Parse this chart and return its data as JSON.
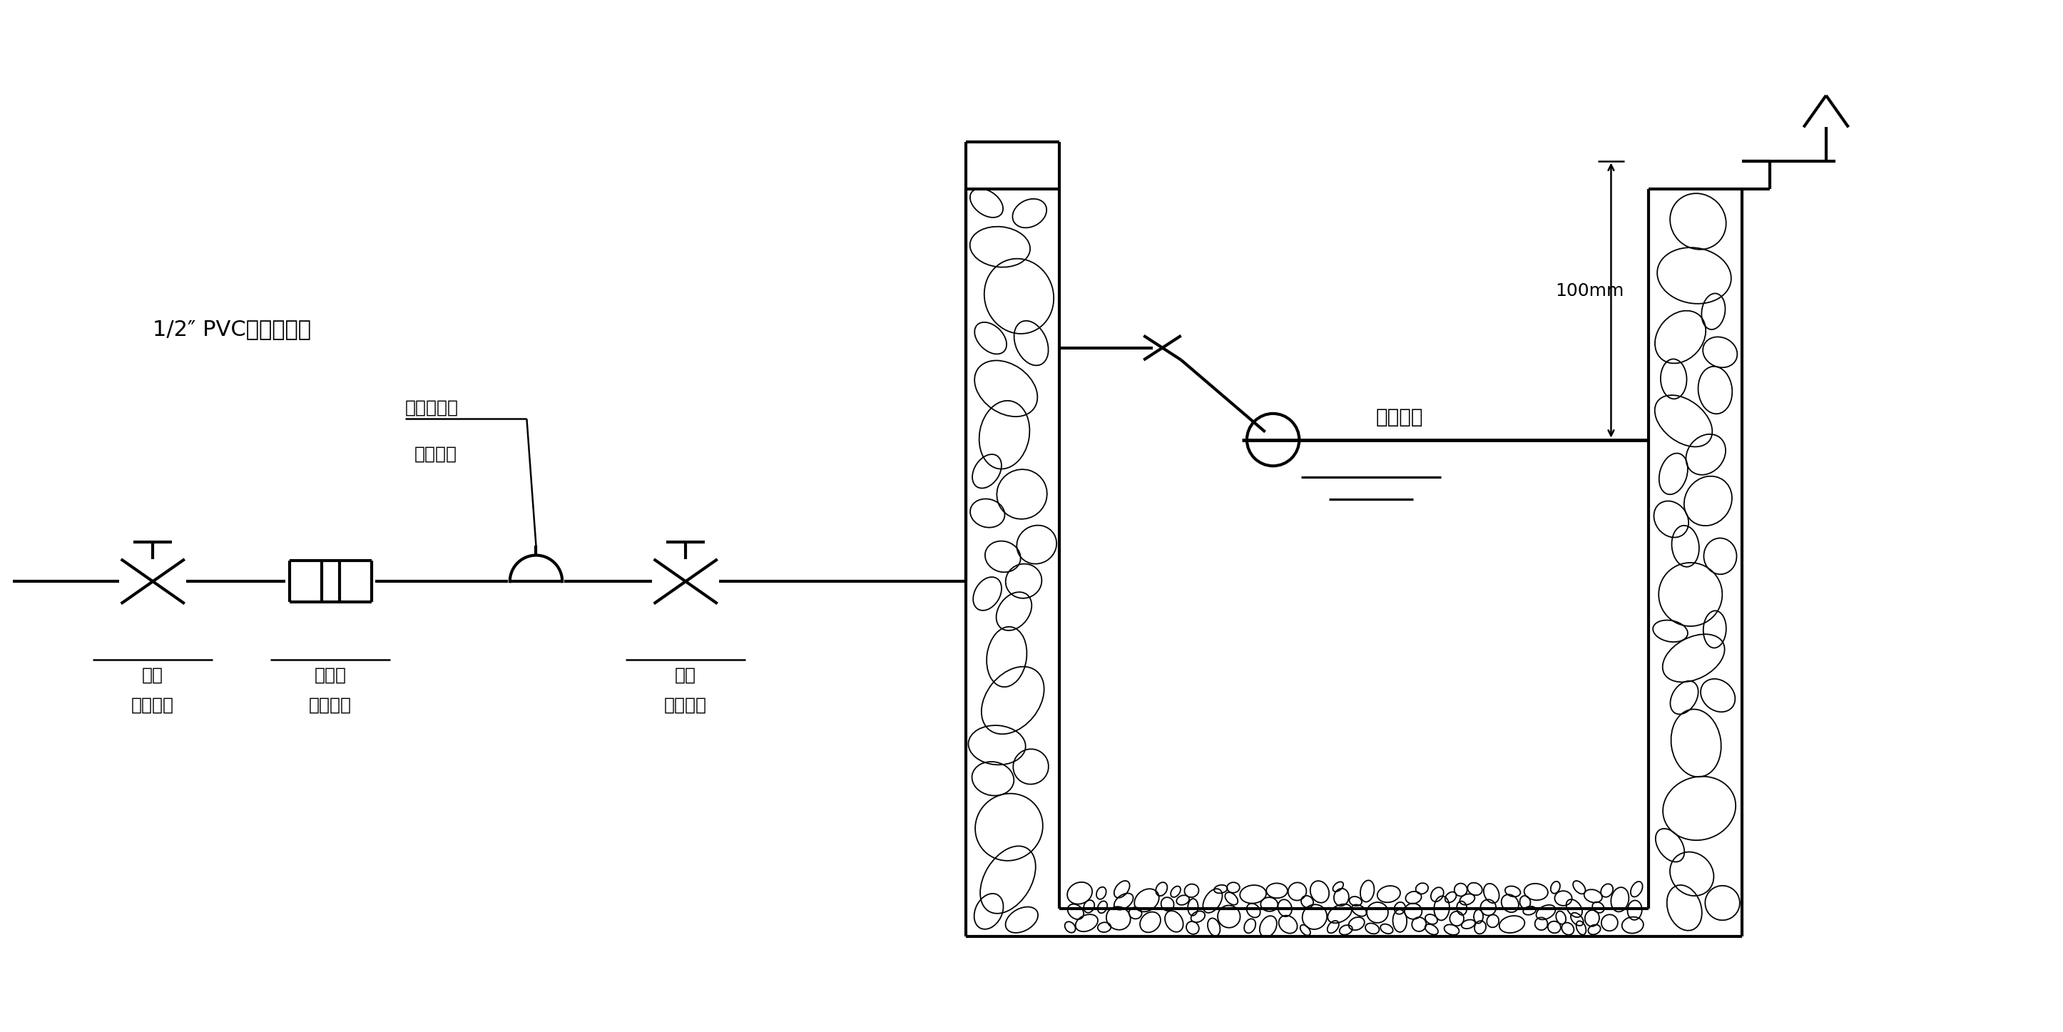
{
  "bg_color": "#ffffff",
  "lc": "#000000",
  "lw_main": 3.0,
  "lw_thin": 1.8,
  "fw": 28.92,
  "fh": 14.47,
  "t_pvc": "1/2″ PVC管或镀锌管",
  "t_valve_1": "遥控浮球阀",
  "t_valve_2": "（主阀）",
  "t_gate1_1": "闸阀",
  "t_gate1_2": "用户自备",
  "t_filter_1": "过滤器",
  "t_filter_2": "用户自备",
  "t_gate2_1": "闸阀",
  "t_gate2_2": "用户自备",
  "t_100mm": "100mm",
  "t_maxlevel": "最高水位",
  "xlim": [
    0,
    110
  ],
  "ylim": [
    0,
    55
  ]
}
